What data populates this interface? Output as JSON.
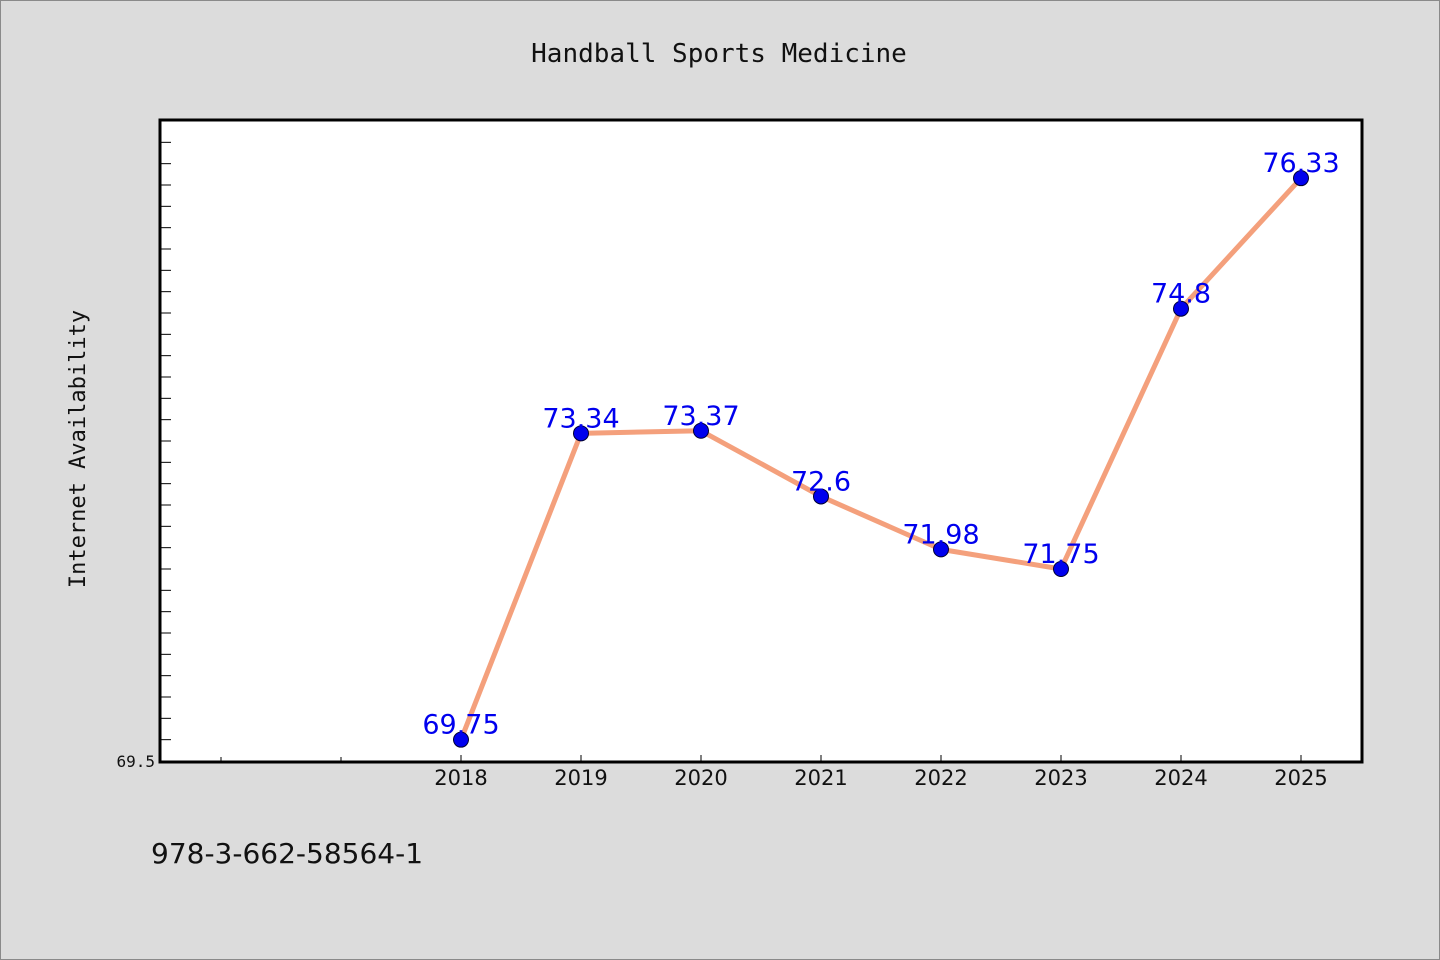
{
  "chart_data": {
    "type": "line",
    "title": "Handball Sports Medicine",
    "xlabel": "",
    "ylabel": "Internet Availability",
    "categories": [
      "2018",
      "2019",
      "2020",
      "2021",
      "2022",
      "2023",
      "2024",
      "2025"
    ],
    "series": [
      {
        "values": [
          69.75,
          73.34,
          73.37,
          72.6,
          71.98,
          71.75,
          74.8,
          76.33
        ],
        "data_labels": [
          "69.75",
          "73.34",
          "73.37",
          "72.6",
          "71.98",
          "71.75",
          "74.8",
          "76.33"
        ]
      }
    ],
    "y_tick_labels": [
      "69.5"
    ],
    "ylim": [
      69.5,
      77.0
    ],
    "grid": false,
    "legend": "none",
    "colors": {
      "line": "#f4a07c",
      "marker": "#0000ee",
      "label": "#0000ee",
      "background": "#dcdcdc",
      "plot_background": "#ffffff"
    }
  },
  "footer": {
    "isbn": "978-3-662-58564-1"
  }
}
